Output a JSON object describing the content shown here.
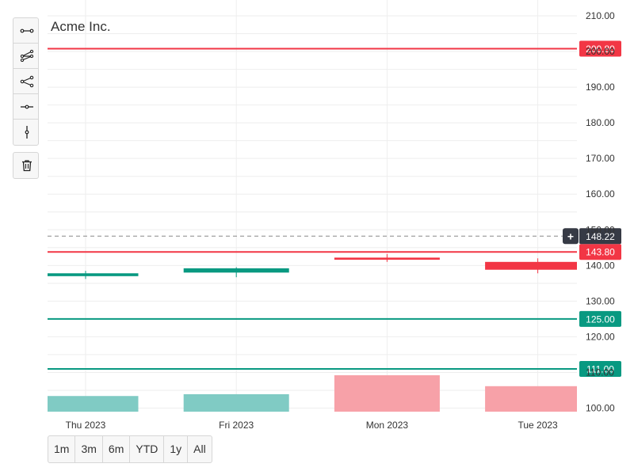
{
  "chart_data": {
    "type": "candlestick",
    "title": "Acme Inc.",
    "categories": [
      "Thu 2023",
      "Fri 2023",
      "Mon 2023",
      "Tue 2023"
    ],
    "ylim": [
      99,
      210
    ],
    "y_ticks": [
      "100.00",
      "110.00",
      "120.00",
      "130.00",
      "140.00",
      "150.00",
      "160.00",
      "170.00",
      "180.00",
      "190.00",
      "200.00",
      "210.00"
    ],
    "candles": [
      {
        "open": 137.0,
        "close": 137.8,
        "high": 138.5,
        "low": 136.2
      },
      {
        "open": 138.0,
        "close": 139.2,
        "high": 139.5,
        "low": 136.7
      },
      {
        "open": 142.2,
        "close": 141.6,
        "high": 143.2,
        "low": 141.0
      },
      {
        "open": 141.0,
        "close": 138.8,
        "high": 142.0,
        "low": 137.8
      }
    ],
    "volume": [
      {
        "fraction": 0.43,
        "direction": "up"
      },
      {
        "fraction": 0.48,
        "direction": "up"
      },
      {
        "fraction": 1.0,
        "direction": "down"
      },
      {
        "fraction": 0.7,
        "direction": "down"
      }
    ],
    "price_lines": [
      {
        "value": 200.8,
        "label": "200.80",
        "color": "#f23645"
      },
      {
        "value": 143.8,
        "label": "143.80",
        "color": "#f23645"
      },
      {
        "value": 125.0,
        "label": "125.00",
        "color": "#089981"
      },
      {
        "value": 111.0,
        "label": "111.00",
        "color": "#089981"
      }
    ],
    "crosshair": {
      "value": 148.22,
      "label": "148.22",
      "plus": "+"
    },
    "grid": true,
    "colors": {
      "up": "#089981",
      "down": "#f23645",
      "volume_up": "#80cbc4",
      "volume_down": "#f7a1a8",
      "crosshair_label_bg": "#363a45"
    }
  },
  "toolbar": {
    "tools": [
      "line-icon",
      "polyline-icon",
      "fork-icon",
      "horizontal-line-icon",
      "vertical-line-icon"
    ],
    "delete_icon": "trash-icon"
  },
  "range_selector": {
    "buttons": [
      "1m",
      "3m",
      "6m",
      "YTD",
      "1y",
      "All"
    ]
  }
}
